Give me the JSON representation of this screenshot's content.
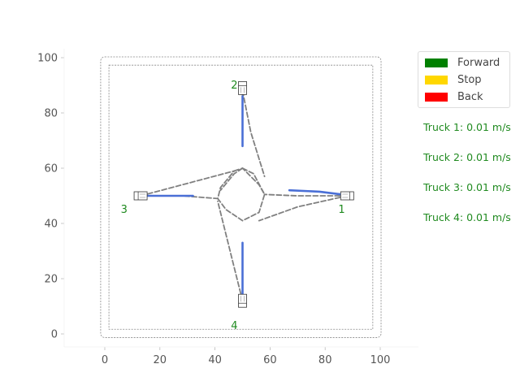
{
  "plot": {
    "x_ticks": [
      0,
      20,
      40,
      60,
      80,
      100
    ],
    "y_ticks": [
      0,
      20,
      40,
      60,
      80,
      100
    ],
    "xlim": [
      -7,
      107
    ],
    "ylim": [
      -5,
      104
    ]
  },
  "colors": {
    "path": "#808080",
    "traveled": "#4a6fd6",
    "label": "#1f8a1f",
    "boundary": "#888888"
  },
  "legend": {
    "items": [
      {
        "label": "Forward",
        "color": "#008000"
      },
      {
        "label": "Stop",
        "color": "#ffd700"
      },
      {
        "label": "Back",
        "color": "#ff0000"
      }
    ]
  },
  "trucks": [
    {
      "id": "1",
      "x": 88,
      "y": 50,
      "heading": 0,
      "speed_text": "Truck 1: 0.01 m/s"
    },
    {
      "id": "2",
      "x": 50,
      "y": 89,
      "heading": 90,
      "speed_text": "Truck 2: 0.01 m/s"
    },
    {
      "id": "3",
      "x": 13,
      "y": 50,
      "heading": 180,
      "speed_text": "Truck 3: 0.01 m/s"
    },
    {
      "id": "4",
      "x": 50,
      "y": 12,
      "heading": 270,
      "speed_text": "Truck 4: 0.01 m/s"
    }
  ]
}
